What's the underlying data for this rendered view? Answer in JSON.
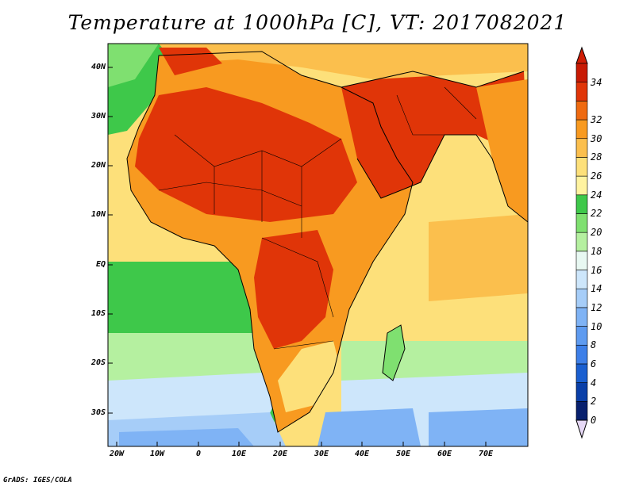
{
  "title": "Temperature at 1000hPa [C], VT: 2017082021",
  "credit": "GrADS: IGES/COLA",
  "latitude_labels": [
    "40N",
    "30N",
    "20N",
    "10N",
    "EQ",
    "10S",
    "20S",
    "30S"
  ],
  "longitude_labels": [
    "20W",
    "10W",
    "0",
    "10E",
    "20E",
    "30E",
    "40E",
    "50E",
    "60E",
    "70E"
  ],
  "colorbar": {
    "levels": [
      "0",
      "2",
      "4",
      "6",
      "8",
      "10",
      "12",
      "14",
      "16",
      "18",
      "20",
      "22",
      "24",
      "26",
      "28",
      "30",
      "32",
      "34"
    ],
    "colors": [
      "#08206e",
      "#0a3fa8",
      "#1a5fd0",
      "#3d7fe8",
      "#5e9bf0",
      "#7fb3f5",
      "#a6cdf8",
      "#cde6fb",
      "#e8f8f2",
      "#b5f0a0",
      "#7fe070",
      "#3ec84a",
      "#fff3a0",
      "#fde07a",
      "#fbbf4d",
      "#f89a20",
      "#ef6a10",
      "#e03508",
      "#c81a04"
    ],
    "under_color": "#e6d8f5",
    "over_color": "#d01e06"
  },
  "palette": {
    "land_hot": "#e03508",
    "land_warm": "#f89a20",
    "ocean_warm": "#fde07a",
    "ocean_mild": "#3ec84a",
    "ocean_cool": "#b5f0a0",
    "ocean_cold": "#7fb3f5",
    "ocean_coldest": "#5e9bf0"
  }
}
